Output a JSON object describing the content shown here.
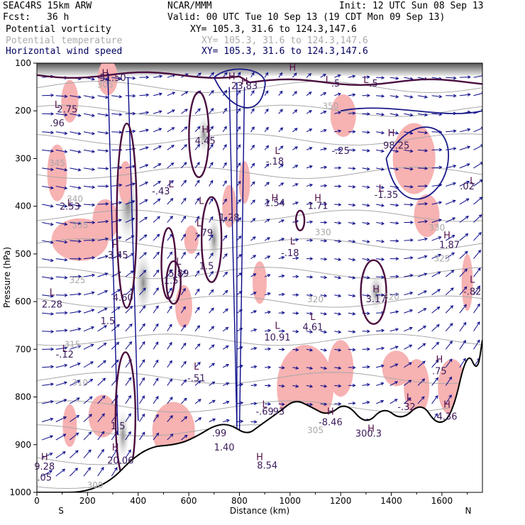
{
  "header": {
    "model": "SEAC4RS 15km ARW",
    "center": "NCAR/MMM",
    "init": "Init: 12 UTC Sun 08 Sep 13",
    "fcst_label": "Fcst:",
    "fcst_value": "36 h",
    "valid": "Valid: 00 UTC Tue 10 Sep 13 (19 CDT Mon 09 Sep 13)"
  },
  "fields": [
    {
      "name": "Potential vorticity",
      "xy": "XY= 105.3, 31.6 to 124.3,147.6",
      "color": "#000000"
    },
    {
      "name": "Potential temperature",
      "xy": "XY= 105.3, 31.6 to 124.3,147.6",
      "color": "#aaaaaa"
    },
    {
      "name": "Horizontal wind speed",
      "xy": "XY= 105.3, 31.6 to 124.3,147.6",
      "color": "#000060"
    }
  ],
  "chart_data": {
    "type": "contour-cross-section",
    "xlabel": "Distance (km)",
    "ylabel": "Pressure (hPa)",
    "xlim": [
      0,
      1760
    ],
    "ylim": [
      1000,
      100
    ],
    "x_ticks": [
      0,
      200,
      400,
      600,
      800,
      1000,
      1200,
      1400,
      1600
    ],
    "y_ticks": [
      100,
      200,
      300,
      400,
      500,
      600,
      700,
      800,
      900,
      1000
    ],
    "x_end_labels": {
      "left": "S",
      "right": "N"
    },
    "colors": {
      "wind_vectors": "#0a0a8a",
      "pv_contour": "#4a0d40",
      "theta_contour": "#a8a8a8",
      "pink_shading": "#f7b2b2",
      "terrain": "#000000"
    },
    "terrain": [
      {
        "x": 0,
        "p": 1000
      },
      {
        "x": 250,
        "p": 1000
      },
      {
        "x": 420,
        "p": 905
      },
      {
        "x": 560,
        "p": 900
      },
      {
        "x": 640,
        "p": 880
      },
      {
        "x": 700,
        "p": 860
      },
      {
        "x": 760,
        "p": 856
      },
      {
        "x": 830,
        "p": 880
      },
      {
        "x": 880,
        "p": 860
      },
      {
        "x": 960,
        "p": 830
      },
      {
        "x": 1020,
        "p": 805
      },
      {
        "x": 1080,
        "p": 820
      },
      {
        "x": 1150,
        "p": 840
      },
      {
        "x": 1220,
        "p": 810
      },
      {
        "x": 1300,
        "p": 860
      },
      {
        "x": 1370,
        "p": 820
      },
      {
        "x": 1440,
        "p": 850
      },
      {
        "x": 1520,
        "p": 810
      },
      {
        "x": 1580,
        "p": 860
      },
      {
        "x": 1640,
        "p": 840
      },
      {
        "x": 1700,
        "p": 700
      },
      {
        "x": 1740,
        "p": 750
      },
      {
        "x": 1760,
        "p": 680
      }
    ],
    "pv_labels": [
      {
        "text": "H",
        "x": 1010,
        "p": 108
      },
      {
        "text": "H",
        "x": 770,
        "p": 127
      },
      {
        "text": "L",
        "x": 80,
        "p": 186
      },
      {
        "text": "2.75",
        "x": 120,
        "p": 196
      },
      {
        "text": ".96",
        "x": 80,
        "p": 225
      },
      {
        "text": "H",
        "x": 270,
        "p": 120
      },
      {
        "text": "51.50",
        "x": 300,
        "p": 130
      },
      {
        "text": "H",
        "x": 820,
        "p": 137
      },
      {
        "text": "23.83",
        "x": 820,
        "p": 147
      },
      {
        "text": "L",
        "x": 1150,
        "p": 134
      },
      {
        "text": ".5",
        "x": 1180,
        "p": 142
      },
      {
        "text": "L",
        "x": 1300,
        "p": 134
      },
      {
        "text": ".5",
        "x": 1330,
        "p": 142
      },
      {
        "text": "H",
        "x": 665,
        "p": 238
      },
      {
        "text": "4.45",
        "x": 665,
        "p": 262
      },
      {
        "text": "L",
        "x": 950,
        "p": 283
      },
      {
        "text": "-.18",
        "x": 940,
        "p": 305
      },
      {
        "text": "-.25",
        "x": 1200,
        "p": 283
      },
      {
        "text": "H",
        "x": 1400,
        "p": 246
      },
      {
        "text": "98.25",
        "x": 1420,
        "p": 272
      },
      {
        "text": "L",
        "x": 1720,
        "p": 346
      },
      {
        "text": ".02",
        "x": 1700,
        "p": 357
      },
      {
        "text": "L",
        "x": 530,
        "p": 353
      },
      {
        "text": "-.43",
        "x": 490,
        "p": 368
      },
      {
        "text": "L",
        "x": 650,
        "p": 388
      },
      {
        "text": "1.28",
        "x": 760,
        "p": 423
      },
      {
        "text": "H",
        "x": 940,
        "p": 382
      },
      {
        "text": "1.54",
        "x": 940,
        "p": 392
      },
      {
        "text": "H",
        "x": 1110,
        "p": 382
      },
      {
        "text": "1.71",
        "x": 1110,
        "p": 398
      },
      {
        "text": "L",
        "x": 1360,
        "p": 362
      },
      {
        "text": "-1.35",
        "x": 1380,
        "p": 375
      },
      {
        "text": "L",
        "x": 130,
        "p": 392
      },
      {
        "text": "2.53",
        "x": 130,
        "p": 400
      },
      {
        "text": "L",
        "x": 640,
        "p": 435
      },
      {
        "text": "-.79",
        "x": 660,
        "p": 455
      },
      {
        "text": "H",
        "x": 1620,
        "p": 460
      },
      {
        "text": "1.87",
        "x": 1630,
        "p": 480
      },
      {
        "text": "H",
        "x": 310,
        "p": 480
      },
      {
        "text": "3.45",
        "x": 320,
        "p": 502
      },
      {
        "text": "L",
        "x": 560,
        "p": 515
      },
      {
        "text": "5.89",
        "x": 560,
        "p": 540
      },
      {
        "text": "1.5",
        "x": 530,
        "p": 555
      },
      {
        "text": "1.5",
        "x": 670,
        "p": 525
      },
      {
        "text": "L",
        "x": 1010,
        "p": 473
      },
      {
        "text": "-.18",
        "x": 1000,
        "p": 497
      },
      {
        "text": "L",
        "x": 1720,
        "p": 553
      },
      {
        "text": "-.82",
        "x": 1720,
        "p": 578
      },
      {
        "text": "L",
        "x": 60,
        "p": 580
      },
      {
        "text": "2.28",
        "x": 60,
        "p": 605
      },
      {
        "text": "4.60",
        "x": 340,
        "p": 591
      },
      {
        "text": "1.5",
        "x": 280,
        "p": 640
      },
      {
        "text": "H",
        "x": 1340,
        "p": 573
      },
      {
        "text": "3.17",
        "x": 1340,
        "p": 594
      },
      {
        "text": "L",
        "x": 950,
        "p": 650
      },
      {
        "text": "10.91",
        "x": 950,
        "p": 674
      },
      {
        "text": "L",
        "x": 1090,
        "p": 631
      },
      {
        "text": "4.61",
        "x": 1090,
        "p": 653
      },
      {
        "text": "L",
        "x": 110,
        "p": 698
      },
      {
        "text": "-.12",
        "x": 110,
        "p": 710
      },
      {
        "text": "L",
        "x": 630,
        "p": 735
      },
      {
        "text": "-.51",
        "x": 630,
        "p": 760
      },
      {
        "text": "H",
        "x": 1590,
        "p": 720
      },
      {
        "text": ".75",
        "x": 1590,
        "p": 745
      },
      {
        "text": "L",
        "x": 900,
        "p": 815
      },
      {
        "text": "-.69",
        "x": 900,
        "p": 830
      },
      {
        "text": ".93",
        "x": 950,
        "p": 830
      },
      {
        "text": "H",
        "x": 1160,
        "p": 830
      },
      {
        "text": "-8.46",
        "x": 1160,
        "p": 852
      },
      {
        "text": "L",
        "x": 1470,
        "p": 800
      },
      {
        "text": "-.32",
        "x": 1460,
        "p": 820
      },
      {
        "text": "H",
        "x": 1620,
        "p": 815
      },
      {
        "text": "4.36",
        "x": 1620,
        "p": 840
      },
      {
        "text": "H",
        "x": 1320,
        "p": 865
      },
      {
        "text": "300.3",
        "x": 1310,
        "p": 876
      },
      {
        "text": "1.5",
        "x": 320,
        "p": 860
      },
      {
        "text": "H",
        "x": 310,
        "p": 905
      },
      {
        "text": "20.06",
        "x": 330,
        "p": 932
      },
      {
        "text": "H",
        "x": 30,
        "p": 925
      },
      {
        "text": "9.28",
        "x": 30,
        "p": 945
      },
      {
        "text": ".05",
        "x": 30,
        "p": 968
      },
      {
        "text": "H",
        "x": 880,
        "p": 925
      },
      {
        "text": "8.54",
        "x": 910,
        "p": 943
      },
      {
        "text": ".99",
        "x": 720,
        "p": 875
      },
      {
        "text": "1.40",
        "x": 740,
        "p": 905
      }
    ],
    "theta_labels": [
      {
        "text": "305",
        "x": 270,
        "p": 145
      },
      {
        "text": "350",
        "x": 1160,
        "p": 190
      },
      {
        "text": "345",
        "x": 80,
        "p": 310
      },
      {
        "text": "340",
        "x": 150,
        "p": 385
      },
      {
        "text": "335",
        "x": 170,
        "p": 440
      },
      {
        "text": "330",
        "x": 1130,
        "p": 455
      },
      {
        "text": "330",
        "x": 1580,
        "p": 445
      },
      {
        "text": "325",
        "x": 1600,
        "p": 510
      },
      {
        "text": "325",
        "x": 160,
        "p": 555
      },
      {
        "text": "320",
        "x": 1100,
        "p": 595
      },
      {
        "text": "320",
        "x": 1400,
        "p": 590
      },
      {
        "text": "315",
        "x": 140,
        "p": 690
      },
      {
        "text": "310",
        "x": 170,
        "p": 770
      },
      {
        "text": "305",
        "x": 1100,
        "p": 870
      },
      {
        "text": "300",
        "x": 230,
        "p": 985
      }
    ]
  }
}
